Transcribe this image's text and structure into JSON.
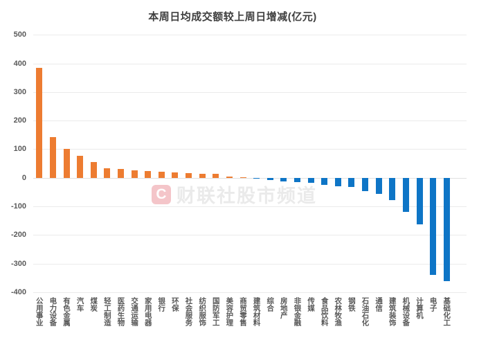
{
  "watermark": {
    "logo_letter": "C",
    "text": "财联社股市频道"
  },
  "chart_data": {
    "type": "bar",
    "title": "本周日均成交额较上周日增减(亿元)",
    "unit": "亿元",
    "categories": [
      "公用事业",
      "电力设备",
      "有色金属",
      "汽车",
      "煤炭",
      "轻工制造",
      "医药生物",
      "交通运输",
      "家用电器",
      "银行",
      "环保",
      "社会服务",
      "纺织服饰",
      "国防军工",
      "美容护理",
      "商贸零售",
      "建筑材料",
      "综合",
      "房地产",
      "非银金融",
      "传媒",
      "食品饮料",
      "农林牧渔",
      "钢铁",
      "石油石化",
      "通信",
      "建筑装饰",
      "机械设备",
      "计算机",
      "电子",
      "基础化工"
    ],
    "values": [
      384,
      143,
      101,
      77,
      56,
      34,
      30,
      27,
      24,
      21,
      19,
      16,
      14,
      13,
      5,
      2,
      -1,
      -9,
      -12,
      -16,
      -18,
      -24,
      -31,
      -33,
      -48,
      -56,
      -79,
      -119,
      -164,
      -340,
      -362
    ],
    "xlabel": "",
    "ylabel": "",
    "ylim": [
      -400,
      500
    ],
    "yticks": [
      500,
      400,
      300,
      200,
      100,
      0,
      -100,
      -200,
      -300,
      -400
    ],
    "grid": "horizontal",
    "legend": "none",
    "colors": {
      "positive": "#ED7C31",
      "negative": "#0E75C6"
    }
  }
}
